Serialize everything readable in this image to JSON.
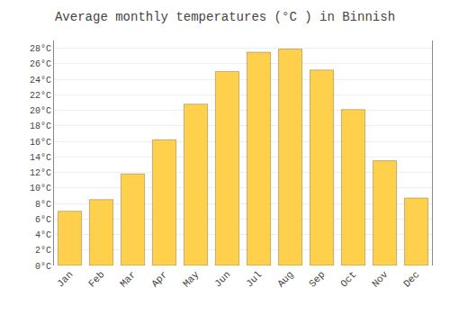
{
  "chart_data": {
    "type": "bar",
    "title": "Average monthly temperatures (°C ) in Binnish",
    "categories": [
      "Jan",
      "Feb",
      "Mar",
      "Apr",
      "May",
      "Jun",
      "Jul",
      "Aug",
      "Sep",
      "Oct",
      "Nov",
      "Dec"
    ],
    "values": [
      7.0,
      8.5,
      11.8,
      16.2,
      20.8,
      25.0,
      27.5,
      27.9,
      25.2,
      20.1,
      13.5,
      8.7
    ],
    "color": "#FFD04C",
    "ylim": [
      0,
      29
    ],
    "yticks": [
      {
        "value": 0,
        "label": "0°C"
      },
      {
        "value": 2,
        "label": "2°C"
      },
      {
        "value": 4,
        "label": "4°C"
      },
      {
        "value": 6,
        "label": "6°C"
      },
      {
        "value": 8,
        "label": "8°C"
      },
      {
        "value": 10,
        "label": "10°C"
      },
      {
        "value": 12,
        "label": "12°C"
      },
      {
        "value": 14,
        "label": "14°C"
      },
      {
        "value": 16,
        "label": "16°C"
      },
      {
        "value": 18,
        "label": "18°C"
      },
      {
        "value": 20,
        "label": "20°C"
      },
      {
        "value": 22,
        "label": "22°C"
      },
      {
        "value": 24,
        "label": "24°C"
      },
      {
        "value": 26,
        "label": "26°C"
      },
      {
        "value": 28,
        "label": "28°C"
      }
    ],
    "grid": true
  }
}
